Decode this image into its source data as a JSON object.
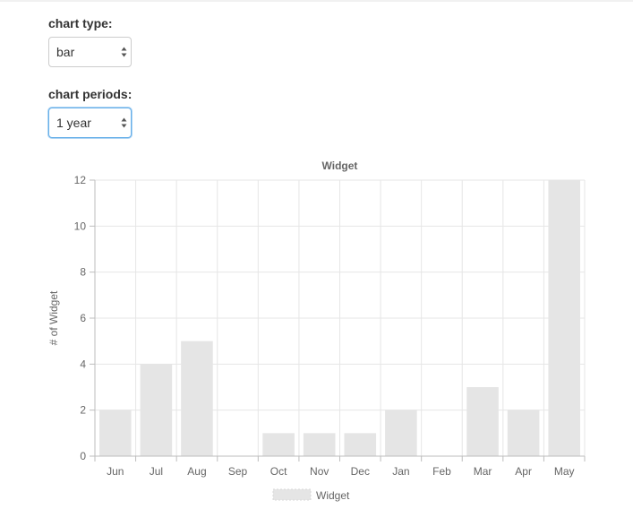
{
  "controls": {
    "chart_type": {
      "label": "chart type:",
      "selected": "bar"
    },
    "chart_periods": {
      "label": "chart periods:",
      "selected": "1 year"
    }
  },
  "colors": {
    "bar_fill": "#e5e5e5",
    "grid": "#e6e6e6",
    "axis": "#bdbdbd",
    "focus_border": "#66afe9"
  },
  "chart_data": {
    "type": "bar",
    "title": "Widget",
    "xlabel": "",
    "ylabel": "# of Widget",
    "categories": [
      "Jun",
      "Jul",
      "Aug",
      "Sep",
      "Oct",
      "Nov",
      "Dec",
      "Jan",
      "Feb",
      "Mar",
      "Apr",
      "May"
    ],
    "series": [
      {
        "name": "Widget",
        "values": [
          2,
          4,
          5,
          0,
          1,
          1,
          1,
          2,
          0,
          3,
          2,
          12
        ]
      }
    ],
    "yticks": [
      0,
      2,
      4,
      6,
      8,
      10,
      12
    ],
    "ylim": [
      0,
      12
    ],
    "grid": true,
    "legend": "bottom"
  }
}
